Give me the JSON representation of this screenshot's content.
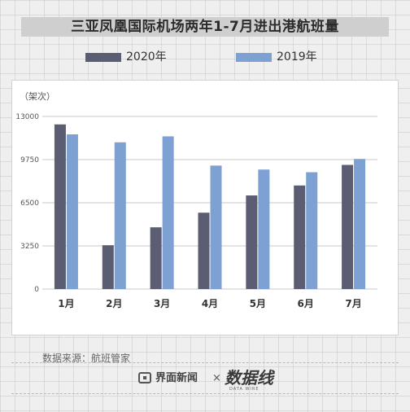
{
  "header": {
    "title": "三亚凤凰国际机场两年1-7月进出港航班量"
  },
  "colors": {
    "series_2020": "#5b5d73",
    "series_2019": "#7da1d2",
    "gridline": "#c8c8c8",
    "axis_text": "#555555"
  },
  "chart_data": {
    "type": "bar",
    "title": "三亚凤凰国际机场两年1-7月进出港航班量",
    "ylabel": "（架次）",
    "xlabel": "",
    "categories": [
      "1月",
      "2月",
      "3月",
      "4月",
      "5月",
      "6月",
      "7月"
    ],
    "series": [
      {
        "name": "2020年",
        "values": [
          12400,
          3300,
          4650,
          5750,
          7050,
          7800,
          9350
        ]
      },
      {
        "name": "2019年",
        "values": [
          11650,
          11050,
          11500,
          9300,
          9000,
          8800,
          9800
        ]
      }
    ],
    "yticks": [
      "0",
      "3250",
      "6500",
      "9750",
      "13000"
    ],
    "ylim": [
      0,
      13000
    ],
    "grid": true,
    "legend_position": "top"
  },
  "footer": {
    "source": "数据来源：航班管家",
    "brand": "界面新闻",
    "separator": "×",
    "logo": "数据线",
    "logo_sub": "DATA WIRE"
  }
}
